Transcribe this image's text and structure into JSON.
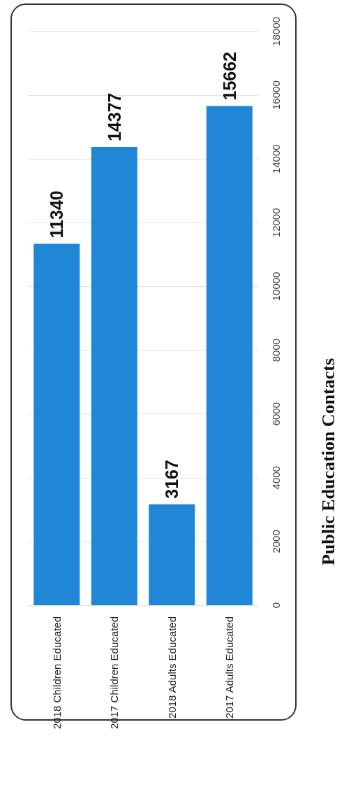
{
  "chart_data": {
    "type": "bar",
    "title": "Public Education Contacts",
    "categories": [
      "2018 Children Educated",
      "2017 Children Educated",
      "2018 Adults Educated",
      "2017 Adults Educated"
    ],
    "values": [
      11340,
      14377,
      3167,
      15662
    ],
    "color": "#1f87d6",
    "ylim": [
      0,
      18000
    ],
    "yticks": [
      0,
      2000,
      4000,
      6000,
      8000,
      10000,
      12000,
      14000,
      16000,
      18000
    ],
    "grid": "y",
    "data_labels": true
  }
}
